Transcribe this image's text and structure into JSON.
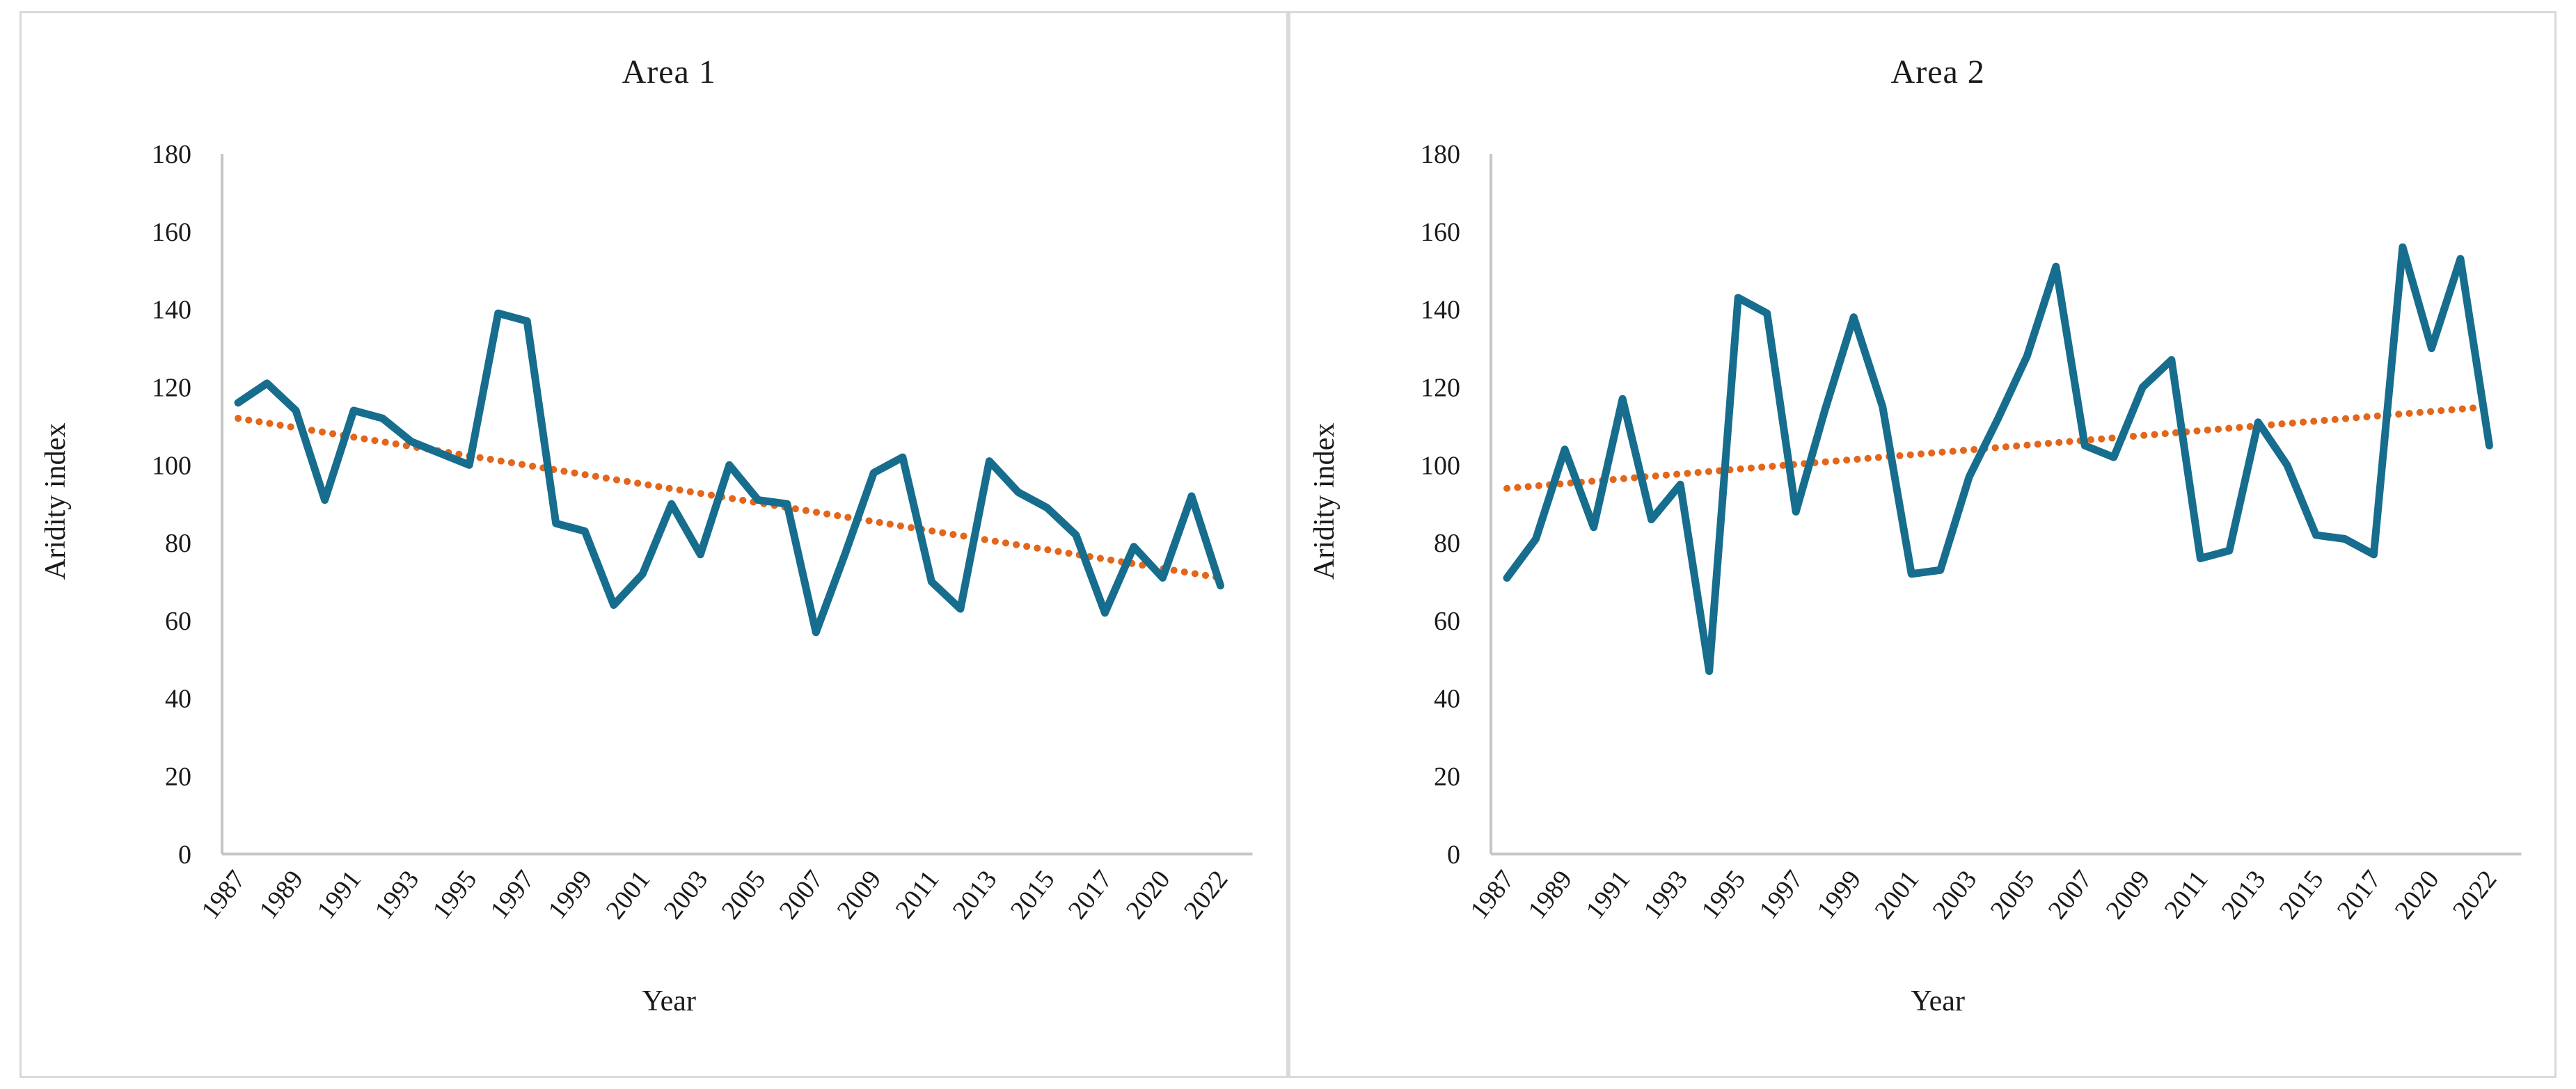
{
  "chart_data": [
    {
      "type": "line",
      "title": "Area 1",
      "xlabel": "Year",
      "ylabel": "Aridity index",
      "ylim": [
        0,
        180
      ],
      "y_ticks": [
        0,
        20,
        40,
        60,
        80,
        100,
        120,
        140,
        160,
        180
      ],
      "categories": [
        "1987",
        "1988",
        "1989",
        "1990",
        "1991",
        "1992",
        "1993",
        "1994",
        "1995",
        "1996",
        "1997",
        "1998",
        "1999",
        "2000",
        "2001",
        "2002",
        "2003",
        "2004",
        "2005",
        "2006",
        "2007",
        "2008",
        "2009",
        "2010",
        "2011",
        "2012",
        "2013",
        "2014",
        "2015",
        "2016",
        "2017",
        "2019",
        "2020",
        "2021",
        "2022"
      ],
      "x_tick_labels": [
        "1987",
        "1989",
        "1991",
        "1993",
        "1995",
        "1997",
        "1999",
        "2001",
        "2003",
        "2005",
        "2007",
        "2009",
        "2011",
        "2013",
        "2015",
        "2017",
        "2020",
        "2022"
      ],
      "grid": false,
      "legend": false,
      "series": [
        {
          "name": "Aridity index",
          "color": "#176d8d",
          "values": [
            116,
            121,
            114,
            91,
            114,
            112,
            106,
            103,
            100,
            139,
            137,
            85,
            83,
            64,
            72,
            90,
            77,
            100,
            91,
            90,
            57,
            77,
            98,
            102,
            70,
            63,
            101,
            93,
            89,
            82,
            62,
            79,
            71,
            92,
            69
          ]
        }
      ],
      "trendline": {
        "name": "Linear trend",
        "style": "dotted",
        "color": "#e2661c",
        "start_value": 112,
        "end_value": 71
      }
    },
    {
      "type": "line",
      "title": "Area 2",
      "xlabel": "Year",
      "ylabel": "Aridity index",
      "ylim": [
        0,
        180
      ],
      "y_ticks": [
        0,
        20,
        40,
        60,
        80,
        100,
        120,
        140,
        160,
        180
      ],
      "categories": [
        "1987",
        "1988",
        "1989",
        "1990",
        "1991",
        "1992",
        "1993",
        "1994",
        "1995",
        "1996",
        "1997",
        "1998",
        "1999",
        "2000",
        "2001",
        "2002",
        "2003",
        "2004",
        "2005",
        "2006",
        "2007",
        "2008",
        "2009",
        "2010",
        "2011",
        "2012",
        "2013",
        "2014",
        "2015",
        "2016",
        "2017",
        "2019",
        "2020",
        "2021",
        "2022"
      ],
      "x_tick_labels": [
        "1987",
        "1989",
        "1991",
        "1993",
        "1995",
        "1997",
        "1999",
        "2001",
        "2003",
        "2005",
        "2007",
        "2009",
        "2011",
        "2013",
        "2015",
        "2017",
        "2020",
        "2022"
      ],
      "grid": false,
      "legend": false,
      "series": [
        {
          "name": "Aridity index",
          "color": "#176d8d",
          "values": [
            71,
            81,
            104,
            84,
            117,
            86,
            95,
            47,
            143,
            139,
            88,
            114,
            138,
            115,
            72,
            73,
            97,
            112,
            128,
            151,
            105,
            102,
            120,
            127,
            76,
            78,
            111,
            100,
            82,
            81,
            77,
            156,
            130,
            153,
            105
          ]
        }
      ],
      "trendline": {
        "name": "Linear trend",
        "style": "dotted",
        "color": "#e2661c",
        "start_value": 94,
        "end_value": 115
      }
    }
  ],
  "colors": {
    "background": "#ffffff",
    "panel_border": "#d9d9d9",
    "axis_line": "#c6c6c6",
    "text": "#1a1a1a"
  }
}
